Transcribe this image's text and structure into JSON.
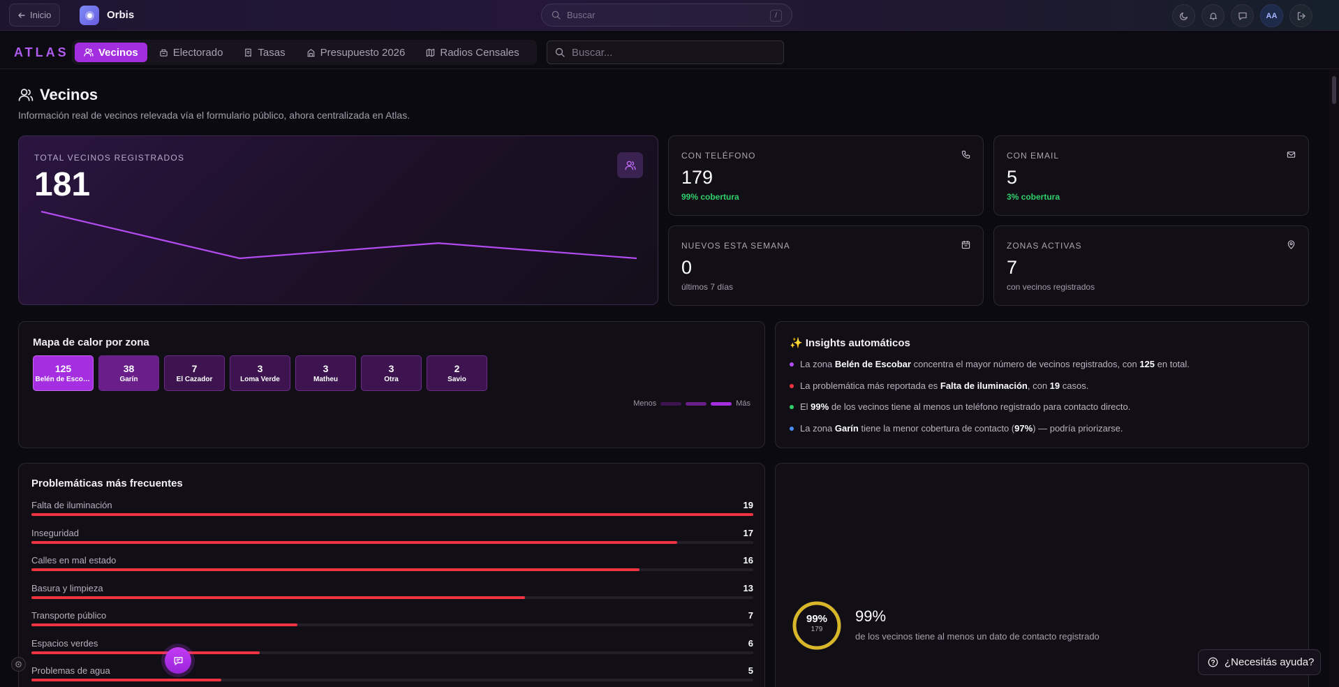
{
  "topbar": {
    "back_label": "Inicio",
    "brand": "Orbis",
    "search_placeholder": "Buscar",
    "search_shortcut": "/",
    "avatar_initials": "AA"
  },
  "nav": {
    "logo": "ATLAS",
    "tabs": [
      {
        "label": "Vecinos",
        "icon": "users-icon",
        "active": true
      },
      {
        "label": "Electorado",
        "icon": "ballot-icon",
        "active": false
      },
      {
        "label": "Tasas",
        "icon": "receipt-icon",
        "active": false
      },
      {
        "label": "Presupuesto 2026",
        "icon": "building-icon",
        "active": false
      },
      {
        "label": "Radios Censales",
        "icon": "map-icon",
        "active": false
      }
    ],
    "search_placeholder": "Buscar..."
  },
  "page": {
    "title": "Vecinos",
    "subtitle": "Información real de vecinos relevada vía el formulario público, ahora centralizada en Atlas."
  },
  "hero": {
    "label": "TOTAL VECINOS REGISTRADOS",
    "value": "181",
    "trend": [
      5,
      1,
      2.3,
      1
    ]
  },
  "stats": [
    {
      "label": "CON TELÉFONO",
      "value": "179",
      "sub": "99% cobertura",
      "icon": "phone-icon",
      "green": true
    },
    {
      "label": "CON EMAIL",
      "value": "5",
      "sub": "3% cobertura",
      "icon": "mail-icon",
      "green": true
    },
    {
      "label": "NUEVOS ESTA SEMANA",
      "value": "0",
      "sub": "últimos 7 días",
      "icon": "calendar-icon",
      "green": false
    },
    {
      "label": "ZONAS ACTIVAS",
      "value": "7",
      "sub": "con vecinos registrados",
      "icon": "map-pin-icon",
      "green": false
    }
  ],
  "heatmap": {
    "title": "Mapa de calor por zona",
    "zones": [
      {
        "count": "125",
        "name": "Belén de Escobar"
      },
      {
        "count": "38",
        "name": "Garín"
      },
      {
        "count": "7",
        "name": "El Cazador"
      },
      {
        "count": "3",
        "name": "Loma Verde"
      },
      {
        "count": "3",
        "name": "Matheu"
      },
      {
        "count": "3",
        "name": "Otra"
      },
      {
        "count": "2",
        "name": "Savio"
      }
    ],
    "legend_less": "Menos",
    "legend_more": "Más",
    "colors": {
      "high": "#a52fe0",
      "mid": "#6a1e8a",
      "low": "#3d1450"
    }
  },
  "insights": {
    "title": "✨ Insights automáticos",
    "items": [
      {
        "color": "#b44ef0",
        "parts": [
          "La zona ",
          "Belén de Escobar",
          " concentra el mayor número de vecinos registrados, con ",
          "125",
          " en total."
        ]
      },
      {
        "color": "#ef3340",
        "parts": [
          "La problemática más reportada es ",
          "Falta de iluminación",
          ", con ",
          "19",
          " casos."
        ]
      },
      {
        "color": "#2fd06a",
        "parts": [
          "El ",
          "99%",
          " de los vecinos tiene al menos un teléfono registrado para contacto directo.",
          "",
          ""
        ]
      },
      {
        "color": "#4c8df5",
        "parts": [
          "La zona ",
          "Garín",
          " tiene la menor cobertura de contacto (",
          "97%",
          ") — podría priorizarse."
        ]
      }
    ]
  },
  "problems": {
    "title": "Problemáticas más frecuentes",
    "max": 19,
    "items": [
      {
        "label": "Falta de iluminación",
        "value": 19
      },
      {
        "label": "Inseguridad",
        "value": 17
      },
      {
        "label": "Calles en mal estado",
        "value": 16
      },
      {
        "label": "Basura y limpieza",
        "value": 13
      },
      {
        "label": "Transporte público",
        "value": 7
      },
      {
        "label": "Espacios verdes",
        "value": 6
      },
      {
        "label": "Problemas de agua",
        "value": 5
      }
    ]
  },
  "coverage": {
    "percent_label": "99%",
    "count": "179",
    "big": "99%",
    "description": "de los vecinos tiene al menos un dato de contacto registrado",
    "fraction": 0.99,
    "color": "#d8b62a"
  },
  "help": {
    "label": "¿Necesitás ayuda?"
  }
}
